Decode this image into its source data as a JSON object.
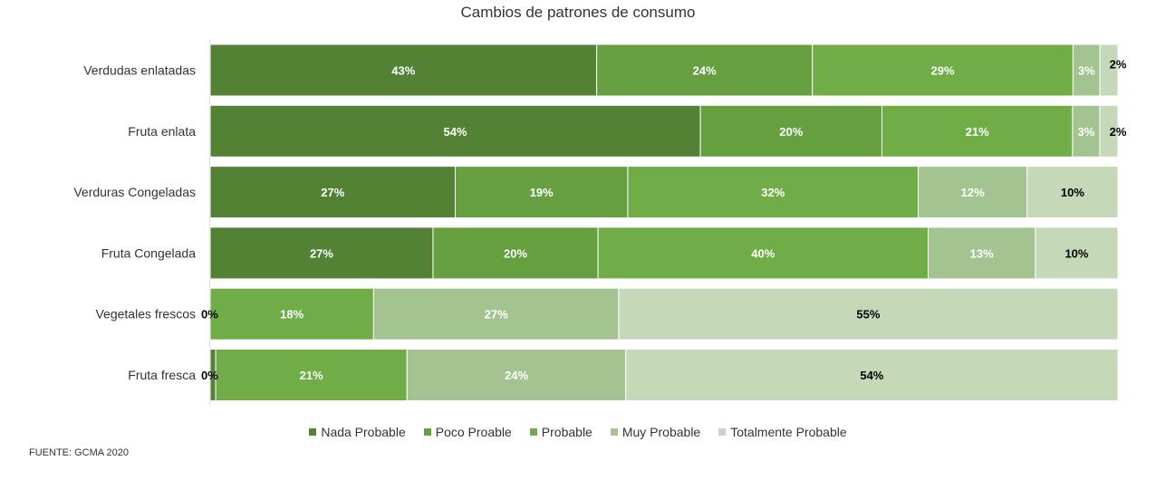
{
  "chart_data": {
    "type": "bar",
    "orientation": "horizontal",
    "stacked": "100%",
    "title": "Cambios de patrones de consumo",
    "categories": [
      "Verdudas enlatadas",
      "Fruta enlata",
      "Verduras Congeladas",
      "Fruta Congelada",
      "Vegetales frescos",
      "Fruta fresca"
    ],
    "series": [
      {
        "name": "Nada Probable",
        "color": "#548235",
        "values": [
          43,
          54,
          27,
          27,
          0,
          0.6
        ],
        "labels": [
          "43%",
          "54%",
          "27%",
          "27%",
          "",
          ""
        ]
      },
      {
        "name": "Poco Proable",
        "color": "#659F3F",
        "values": [
          24,
          20,
          19,
          20,
          0,
          0
        ],
        "labels": [
          "24%",
          "20%",
          "19%",
          "20%",
          "",
          ""
        ]
      },
      {
        "name": "Probable",
        "color": "#70AD47",
        "values": [
          29,
          21,
          32,
          40,
          18,
          21
        ],
        "labels": [
          "29%",
          "21%",
          "32%",
          "40%",
          "18%",
          "21%"
        ]
      },
      {
        "name": "Muy Probable",
        "color": "#A3C490",
        "values": [
          3,
          3,
          12,
          13,
          27,
          24
        ],
        "labels": [
          "3%",
          "3%",
          "12%",
          "13%",
          "27%",
          "24%"
        ]
      },
      {
        "name": "Totalmente Probable",
        "color": "#C5D9B8",
        "values": [
          2,
          2,
          10,
          10,
          55,
          54
        ],
        "labels": [
          "2%",
          "2%",
          "10%",
          "10%",
          "55%",
          "54%"
        ]
      }
    ],
    "zero_labels": [
      "",
      "",
      "",
      "",
      "0%",
      "0%"
    ],
    "xlim": [
      0,
      100
    ],
    "grid": false,
    "legend_position": "bottom"
  },
  "source_text": "FUENTE: GCMA 2020"
}
